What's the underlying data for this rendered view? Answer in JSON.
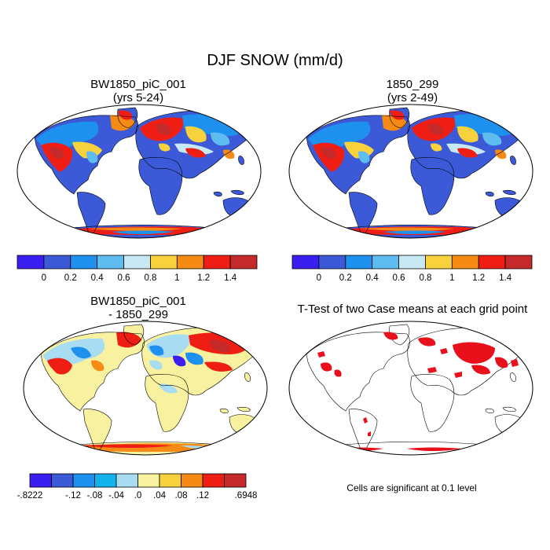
{
  "figure": {
    "title": "DJF SNOW (mm/d)",
    "footnote": "Cells are significant at 0.1 level"
  },
  "panels": [
    {
      "name": "case",
      "title_line1": "BW1850_piC_001",
      "title_line2": "(yrs 5-24)",
      "colorbar": {
        "colors": [
          "#3b1ff0",
          "#3c5ad8",
          "#1e90ee",
          "#5fbcf0",
          "#c8e8f4",
          "#f8d23c",
          "#f58a14",
          "#ee1e14",
          "#c52a2a"
        ],
        "labels": [
          "0",
          "0.2",
          "0.4",
          "0.6",
          "0.8",
          "1",
          "1.2",
          "1.4"
        ]
      }
    },
    {
      "name": "control",
      "title_line1": "1850_299",
      "title_line2": "(yrs 2-49)",
      "colorbar": {
        "colors": [
          "#3b1ff0",
          "#3c5ad8",
          "#1e90ee",
          "#5fbcf0",
          "#c8e8f4",
          "#f8d23c",
          "#f58a14",
          "#ee1e14",
          "#c52a2a"
        ],
        "labels": [
          "0",
          "0.2",
          "0.4",
          "0.6",
          "0.8",
          "1",
          "1.2",
          "1.4"
        ]
      }
    },
    {
      "name": "difference",
      "title_line1": "BW1850_piC_001",
      "title_line2": "- 1850_299",
      "colorbar": {
        "colors": [
          "#3b1ff0",
          "#3c5ad8",
          "#1e90ee",
          "#13b4ee",
          "#a8dcf2",
          "#f8f2a0",
          "#f8d23c",
          "#f58a14",
          "#ee1e14",
          "#c52a2a"
        ],
        "labels": [
          "-.8222",
          "-.12",
          "-.08",
          "-.04",
          ".0",
          ".04",
          ".08",
          ".12",
          ".6948"
        ]
      }
    },
    {
      "name": "ttest",
      "title_line1": "T-Test of two Case means at each grid point"
    }
  ]
}
